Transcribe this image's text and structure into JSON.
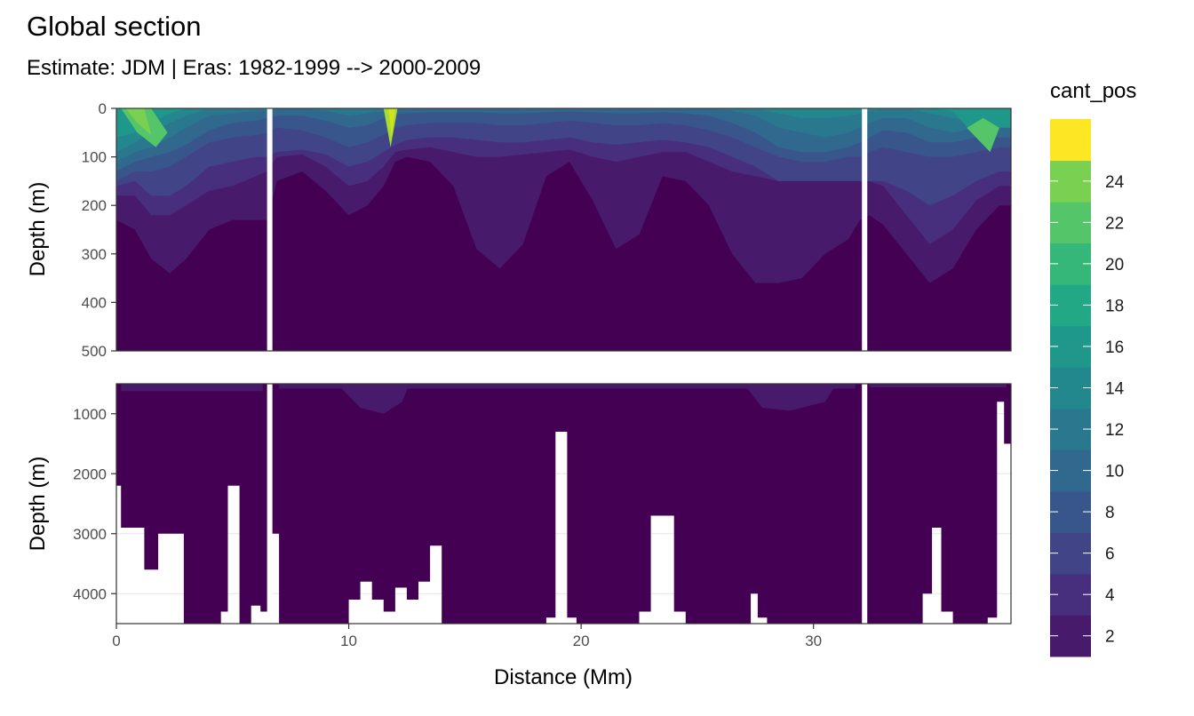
{
  "chart_data": {
    "type": "heatmap",
    "title": "Global section",
    "subtitle": "Estimate: JDM  | Eras: 1982-1999 --> 2000-2009",
    "xlabel": "Distance (Mm)",
    "ylabel": "Depth (m)",
    "x_ticks": [
      0,
      10,
      20,
      30
    ],
    "xlim": [
      0,
      38.5
    ],
    "colormap": "viridis",
    "panels": [
      {
        "name": "upper",
        "ylim": [
          0,
          500
        ],
        "y_ticks": [
          0,
          100,
          200,
          300,
          400,
          500
        ],
        "y_reversed": true
      },
      {
        "name": "lower",
        "ylim": [
          500,
          4500
        ],
        "y_ticks": [
          1000,
          2000,
          3000,
          4000
        ],
        "y_reversed": true
      }
    ],
    "gaps_x": [
      6.6,
      32.2
    ],
    "legend": {
      "title": "cant_pos",
      "breaks": [
        2,
        4,
        6,
        8,
        10,
        12,
        14,
        16,
        18,
        20,
        22,
        24
      ],
      "colors": [
        "#440154",
        "#481A6C",
        "#472F7D",
        "#414487",
        "#39568C",
        "#31688E",
        "#2A788E",
        "#23888E",
        "#1F988B",
        "#22A884",
        "#35B779",
        "#54C568",
        "#7AD151",
        "#A5DB36",
        "#D2E21B",
        "#FDE725"
      ],
      "placement": "right"
    },
    "profiles_upper": {
      "x": [
        0,
        0.8,
        1.5,
        2.3,
        3.0,
        4.0,
        5.0,
        6.0,
        6.5,
        6.9,
        8.0,
        9.0,
        10.0,
        10.8,
        11.5,
        12.0,
        12.5,
        13.5,
        14.5,
        15.5,
        16.5,
        17.5,
        18.5,
        19.5,
        20.5,
        21.5,
        22.5,
        23.5,
        24.5,
        25.5,
        26.5,
        27.5,
        28.5,
        29.5,
        30.5,
        31.5,
        32.0,
        32.4,
        33.0,
        34.0,
        35.0,
        36.0,
        37.0,
        38.0,
        38.5
      ],
      "contours": [
        {
          "level": 2,
          "depth": [
            230,
            250,
            310,
            340,
            310,
            250,
            230,
            230,
            230,
            150,
            130,
            170,
            220,
            200,
            160,
            110,
            100,
            110,
            160,
            290,
            330,
            280,
            140,
            110,
            190,
            290,
            260,
            140,
            150,
            200,
            300,
            360,
            360,
            350,
            300,
            270,
            230,
            220,
            240,
            300,
            360,
            330,
            250,
            200,
            200
          ]
        },
        {
          "level": 4,
          "depth": [
            180,
            180,
            220,
            220,
            200,
            170,
            160,
            140,
            130,
            100,
            95,
            120,
            160,
            150,
            120,
            90,
            85,
            80,
            90,
            100,
            100,
            95,
            90,
            85,
            100,
            110,
            100,
            90,
            90,
            110,
            130,
            140,
            150,
            150,
            150,
            150,
            150,
            150,
            160,
            220,
            280,
            250,
            190,
            160,
            160
          ]
        },
        {
          "level": 6,
          "depth": [
            160,
            150,
            180,
            180,
            160,
            120,
            110,
            100,
            100,
            90,
            85,
            95,
            120,
            110,
            90,
            75,
            65,
            60,
            60,
            65,
            70,
            70,
            65,
            60,
            70,
            75,
            70,
            65,
            70,
            80,
            100,
            120,
            150,
            150,
            150,
            150,
            150,
            150,
            150,
            170,
            200,
            180,
            150,
            130,
            130
          ]
        },
        {
          "level": 8,
          "depth": [
            150,
            130,
            130,
            120,
            100,
            70,
            60,
            55,
            50,
            40,
            45,
            60,
            80,
            70,
            55,
            40,
            35,
            30,
            30,
            30,
            35,
            35,
            30,
            25,
            30,
            35,
            35,
            30,
            35,
            45,
            60,
            80,
            100,
            110,
            110,
            100,
            100,
            90,
            80,
            90,
            100,
            100,
            90,
            80,
            80
          ]
        },
        {
          "level": 10,
          "depth": [
            130,
            110,
            100,
            90,
            75,
            45,
            30,
            25,
            20,
            15,
            15,
            25,
            40,
            35,
            20,
            12,
            10,
            8,
            8,
            8,
            10,
            10,
            8,
            6,
            8,
            10,
            10,
            8,
            10,
            15,
            30,
            50,
            80,
            90,
            90,
            80,
            70,
            60,
            45,
            50,
            70,
            70,
            60,
            60,
            60
          ]
        },
        {
          "level": 12,
          "depth": [
            110,
            90,
            80,
            60,
            40,
            15,
            10,
            5,
            5,
            0,
            0,
            5,
            15,
            10,
            5,
            0,
            0,
            0,
            0,
            0,
            0,
            0,
            0,
            0,
            0,
            0,
            0,
            0,
            0,
            0,
            5,
            15,
            40,
            50,
            60,
            50,
            40,
            30,
            20,
            20,
            40,
            50,
            40,
            40,
            40
          ]
        },
        {
          "level": 14,
          "depth": [
            90,
            70,
            50,
            30,
            15,
            0,
            0,
            0,
            0,
            0,
            0,
            0,
            0,
            0,
            0,
            0,
            0,
            0,
            0,
            0,
            0,
            0,
            0,
            0,
            0,
            0,
            0,
            0,
            0,
            0,
            0,
            0,
            10,
            20,
            20,
            15,
            10,
            5,
            0,
            0,
            10,
            20,
            30,
            30,
            30
          ]
        },
        {
          "level": 16,
          "depth": [
            60,
            50,
            30,
            10,
            0,
            0,
            0,
            0,
            0,
            0,
            0,
            0,
            0,
            0,
            0,
            0,
            0,
            0,
            0,
            0,
            0,
            0,
            0,
            0,
            0,
            0,
            0,
            0,
            0,
            0,
            0,
            0,
            0,
            0,
            0,
            0,
            0,
            0,
            0,
            0,
            0,
            5,
            60,
            40,
            40
          ]
        }
      ]
    },
    "bottom_profile": {
      "x": [
        0,
        0.2,
        0.5,
        1.2,
        1.8,
        2.4,
        2.9,
        3.5,
        4.5,
        4.8,
        5.0,
        5.3,
        5.8,
        6.2,
        6.5,
        7.0,
        9.5,
        10.0,
        10.5,
        11.0,
        11.5,
        12.0,
        12.5,
        13.0,
        13.5,
        14.0,
        15.0,
        17.5,
        18.5,
        18.9,
        19.1,
        19.4,
        19.8,
        21.0,
        22.5,
        23.0,
        23.5,
        24.0,
        24.5,
        25.5,
        27.0,
        27.3,
        27.6,
        28.0,
        29.0,
        30.5,
        31.5,
        32.2,
        33.0,
        34.0,
        34.7,
        35.1,
        35.5,
        36.0,
        37.0,
        37.5,
        37.9,
        38.2,
        38.5
      ],
      "depth": [
        2200,
        2900,
        2900,
        3600,
        3000,
        3000,
        4500,
        4500,
        4300,
        2200,
        2200,
        4500,
        4200,
        4300,
        3000,
        4500,
        4500,
        4100,
        3800,
        4100,
        4300,
        3900,
        4100,
        3800,
        3200,
        4500,
        4500,
        4500,
        4400,
        1300,
        1300,
        4400,
        4500,
        4500,
        4300,
        2700,
        2700,
        4300,
        4500,
        4500,
        4500,
        4000,
        4400,
        4500,
        4500,
        4500,
        4500,
        4500,
        4500,
        4500,
        4000,
        2900,
        4300,
        4500,
        4500,
        4400,
        800,
        1500,
        1600
      ]
    }
  }
}
